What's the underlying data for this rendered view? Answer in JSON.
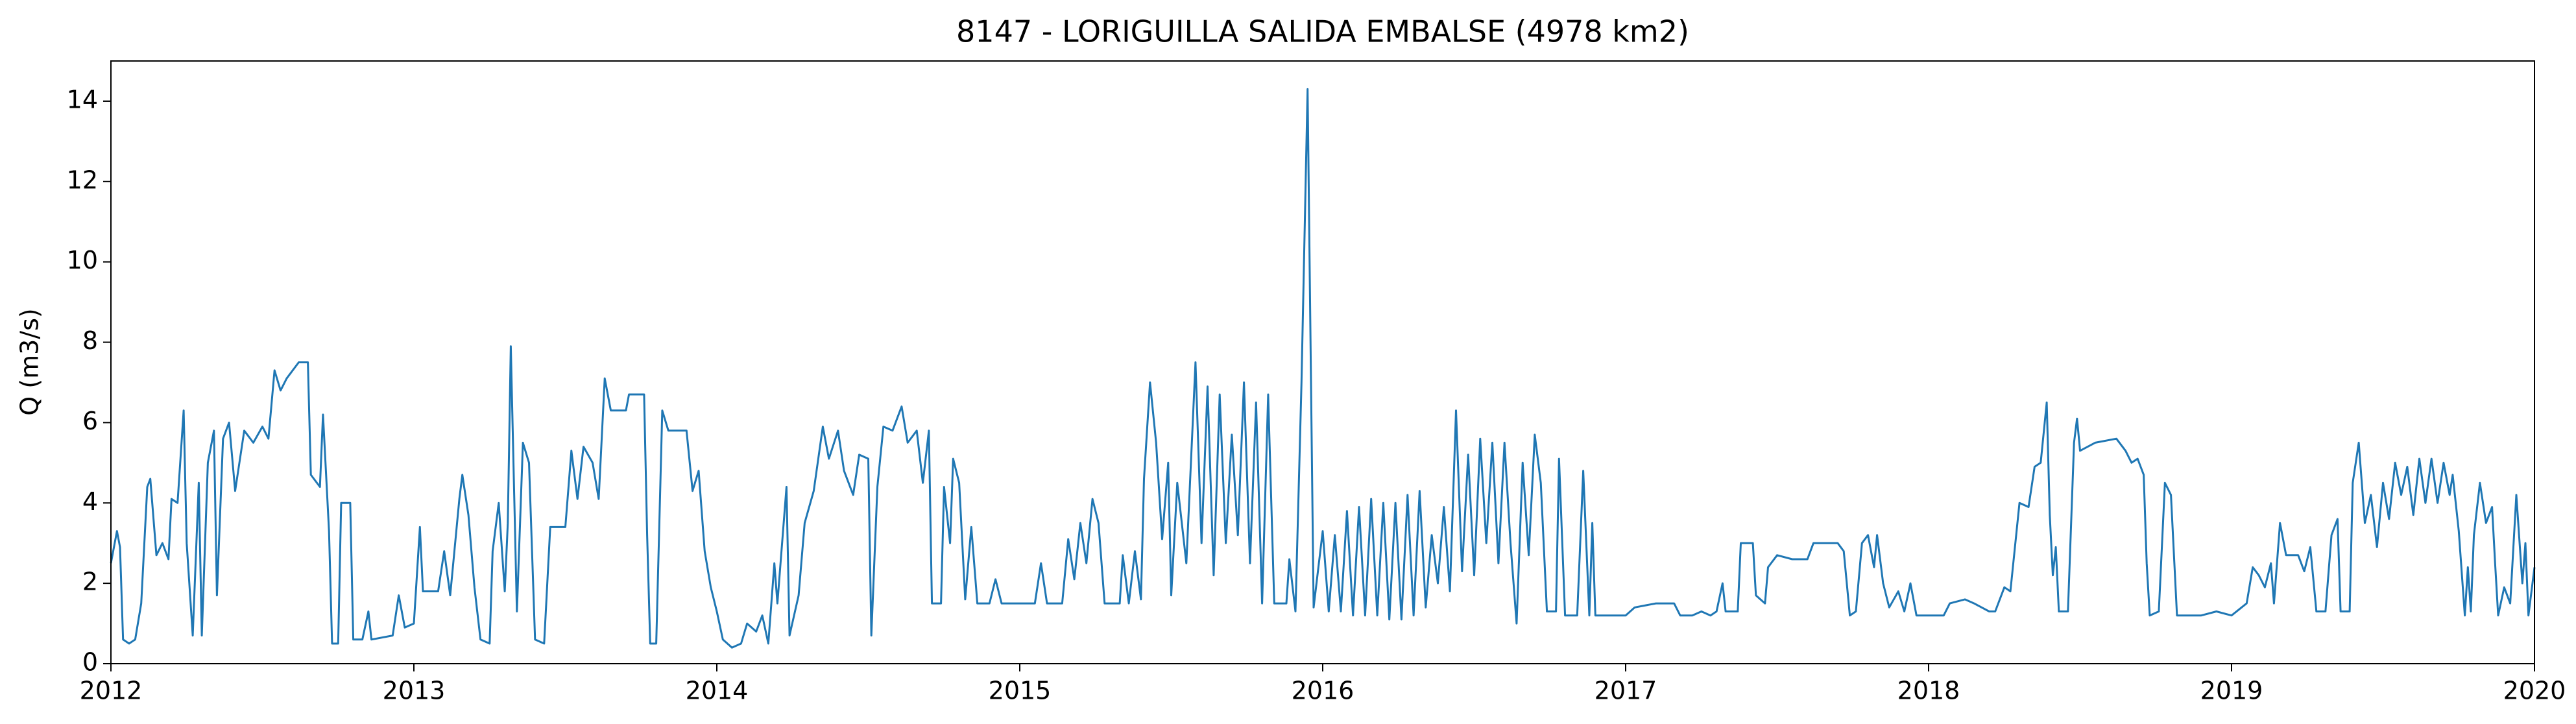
{
  "chart_data": {
    "type": "line",
    "title": "8147 - LORIGUILLA SALIDA EMBALSE (4978 km2)",
    "y_label": "Q (m3/s)",
    "color": "#1f77b4",
    "xlim": [
      2012,
      2020
    ],
    "xticks": [
      2012,
      2013,
      2014,
      2015,
      2016,
      2017,
      2018,
      2019,
      2020
    ],
    "ylim": [
      0,
      15
    ],
    "yticks": [
      0,
      2,
      4,
      6,
      8,
      10,
      12,
      14
    ],
    "x": [
      2012.0,
      2012.02,
      2012.03,
      2012.04,
      2012.06,
      2012.08,
      2012.1,
      2012.12,
      2012.13,
      2012.15,
      2012.17,
      2012.19,
      2012.2,
      2012.22,
      2012.24,
      2012.25,
      2012.27,
      2012.29,
      2012.3,
      2012.32,
      2012.34,
      2012.35,
      2012.37,
      2012.39,
      2012.41,
      2012.44,
      2012.47,
      2012.5,
      2012.52,
      2012.54,
      2012.56,
      2012.58,
      2012.62,
      2012.65,
      2012.66,
      2012.69,
      2012.7,
      2012.72,
      2012.73,
      2012.75,
      2012.76,
      2012.79,
      2012.8,
      2012.83,
      2012.85,
      2012.86,
      2012.93,
      2012.95,
      2012.97,
      2013.0,
      2013.02,
      2013.03,
      2013.08,
      2013.1,
      2013.12,
      2013.15,
      2013.16,
      2013.18,
      2013.2,
      2013.22,
      2013.25,
      2013.26,
      2013.28,
      2013.3,
      2013.31,
      2013.32,
      2013.34,
      2013.36,
      2013.38,
      2013.4,
      2013.43,
      2013.45,
      2013.5,
      2013.52,
      2013.54,
      2013.56,
      2013.59,
      2013.61,
      2013.63,
      2013.65,
      2013.7,
      2013.71,
      2013.76,
      2013.77,
      2013.78,
      2013.8,
      2013.82,
      2013.84,
      2013.9,
      2013.92,
      2013.94,
      2013.96,
      2013.98,
      2014.0,
      2014.02,
      2014.05,
      2014.08,
      2014.1,
      2014.13,
      2014.15,
      2014.17,
      2014.19,
      2014.2,
      2014.23,
      2014.24,
      2014.27,
      2014.29,
      2014.32,
      2014.35,
      2014.37,
      2014.4,
      2014.42,
      2014.45,
      2014.47,
      2014.5,
      2014.51,
      2014.53,
      2014.55,
      2014.58,
      2014.61,
      2014.63,
      2014.66,
      2014.68,
      2014.7,
      2014.71,
      2014.74,
      2014.75,
      2014.77,
      2014.78,
      2014.8,
      2014.82,
      2014.84,
      2014.86,
      2014.9,
      2014.92,
      2014.94,
      2015.05,
      2015.07,
      2015.09,
      2015.14,
      2015.16,
      2015.18,
      2015.2,
      2015.22,
      2015.24,
      2015.26,
      2015.28,
      2015.33,
      2015.34,
      2015.36,
      2015.38,
      2015.4,
      2015.41,
      2015.43,
      2015.45,
      2015.47,
      2015.49,
      2015.5,
      2015.52,
      2015.55,
      2015.58,
      2015.6,
      2015.62,
      2015.64,
      2015.66,
      2015.68,
      2015.7,
      2015.72,
      2015.74,
      2015.76,
      2015.78,
      2015.8,
      2015.82,
      2015.84,
      2015.88,
      2015.89,
      2015.91,
      2015.93,
      2015.95,
      2015.97,
      2016.0,
      2016.02,
      2016.04,
      2016.06,
      2016.08,
      2016.1,
      2016.12,
      2016.14,
      2016.16,
      2016.18,
      2016.2,
      2016.22,
      2016.24,
      2016.26,
      2016.28,
      2016.3,
      2016.32,
      2016.34,
      2016.36,
      2016.38,
      2016.4,
      2016.42,
      2016.44,
      2016.46,
      2016.48,
      2016.5,
      2016.52,
      2016.54,
      2016.56,
      2016.58,
      2016.6,
      2016.62,
      2016.64,
      2016.66,
      2016.68,
      2016.7,
      2016.72,
      2016.74,
      2016.77,
      2016.78,
      2016.8,
      2016.84,
      2016.86,
      2016.88,
      2016.89,
      2016.9,
      2017.0,
      2017.03,
      2017.1,
      2017.16,
      2017.18,
      2017.22,
      2017.25,
      2017.28,
      2017.3,
      2017.32,
      2017.33,
      2017.37,
      2017.38,
      2017.42,
      2017.43,
      2017.46,
      2017.47,
      2017.5,
      2017.55,
      2017.6,
      2017.62,
      2017.7,
      2017.72,
      2017.74,
      2017.76,
      2017.78,
      2017.8,
      2017.82,
      2017.83,
      2017.85,
      2017.87,
      2017.9,
      2017.92,
      2017.94,
      2017.96,
      2018.05,
      2018.07,
      2018.12,
      2018.15,
      2018.2,
      2018.22,
      2018.25,
      2018.27,
      2018.3,
      2018.33,
      2018.35,
      2018.37,
      2018.39,
      2018.4,
      2018.41,
      2018.42,
      2018.43,
      2018.46,
      2018.48,
      2018.49,
      2018.5,
      2018.55,
      2018.62,
      2018.65,
      2018.67,
      2018.69,
      2018.71,
      2018.72,
      2018.73,
      2018.76,
      2018.78,
      2018.8,
      2018.82,
      2018.9,
      2018.95,
      2019.0,
      2019.05,
      2019.07,
      2019.09,
      2019.11,
      2019.13,
      2019.14,
      2019.16,
      2019.18,
      2019.22,
      2019.24,
      2019.26,
      2019.28,
      2019.31,
      2019.33,
      2019.35,
      2019.36,
      2019.39,
      2019.4,
      2019.42,
      2019.44,
      2019.46,
      2019.48,
      2019.5,
      2019.52,
      2019.54,
      2019.56,
      2019.58,
      2019.6,
      2019.62,
      2019.64,
      2019.66,
      2019.68,
      2019.7,
      2019.72,
      2019.73,
      2019.75,
      2019.77,
      2019.78,
      2019.79,
      2019.8,
      2019.82,
      2019.84,
      2019.86,
      2019.87,
      2019.88,
      2019.9,
      2019.92,
      2019.94,
      2019.96,
      2019.97,
      2019.98,
      2020.0
    ],
    "values": [
      2.5,
      3.3,
      2.9,
      0.6,
      0.5,
      0.6,
      1.5,
      4.4,
      4.6,
      2.7,
      3.0,
      2.6,
      4.1,
      4.0,
      6.3,
      3.0,
      0.7,
      4.5,
      0.7,
      5.0,
      5.8,
      1.7,
      5.6,
      6.0,
      4.3,
      5.8,
      5.5,
      5.9,
      5.6,
      7.3,
      6.8,
      7.1,
      7.5,
      7.5,
      4.7,
      4.4,
      6.2,
      3.3,
      0.5,
      0.5,
      4.0,
      4.0,
      0.6,
      0.6,
      1.3,
      0.6,
      0.7,
      1.7,
      0.9,
      1.0,
      3.4,
      1.8,
      1.8,
      2.8,
      1.7,
      4.1,
      4.7,
      3.7,
      1.9,
      0.6,
      0.5,
      2.8,
      4.0,
      1.8,
      3.5,
      7.9,
      1.3,
      5.5,
      5.0,
      0.6,
      0.5,
      3.4,
      3.4,
      5.3,
      4.1,
      5.4,
      5.0,
      4.1,
      7.1,
      6.3,
      6.3,
      6.7,
      6.7,
      3.2,
      0.5,
      0.5,
      6.3,
      5.8,
      5.8,
      4.3,
      4.8,
      2.8,
      1.9,
      1.3,
      0.6,
      0.4,
      0.5,
      1.0,
      0.8,
      1.2,
      0.5,
      2.5,
      1.5,
      4.4,
      0.7,
      1.7,
      3.5,
      4.3,
      5.9,
      5.1,
      5.8,
      4.8,
      4.2,
      5.2,
      5.1,
      0.7,
      4.4,
      5.9,
      5.8,
      6.4,
      5.5,
      5.8,
      4.5,
      5.8,
      1.5,
      1.5,
      4.4,
      3.0,
      5.1,
      4.5,
      1.6,
      3.4,
      1.5,
      1.5,
      2.1,
      1.5,
      1.5,
      2.5,
      1.5,
      1.5,
      3.1,
      2.1,
      3.5,
      2.5,
      4.1,
      3.5,
      1.5,
      1.5,
      2.7,
      1.5,
      2.8,
      1.6,
      4.6,
      7.0,
      5.5,
      3.1,
      5.0,
      1.7,
      4.5,
      2.5,
      7.5,
      3.0,
      6.9,
      2.2,
      6.7,
      3.0,
      5.7,
      3.2,
      7.0,
      2.5,
      6.5,
      1.5,
      6.7,
      1.5,
      1.5,
      2.6,
      1.3,
      7.0,
      14.3,
      1.4,
      3.3,
      1.3,
      3.2,
      1.3,
      3.8,
      1.2,
      3.9,
      1.2,
      4.1,
      1.2,
      4.0,
      1.1,
      4.0,
      1.1,
      4.2,
      1.2,
      4.3,
      1.4,
      3.2,
      2.0,
      3.9,
      1.8,
      6.3,
      2.3,
      5.2,
      2.2,
      5.6,
      3.0,
      5.5,
      2.5,
      5.5,
      3.0,
      1.0,
      5.0,
      2.7,
      5.7,
      4.5,
      1.3,
      1.3,
      5.1,
      1.2,
      1.2,
      4.8,
      1.2,
      3.5,
      1.2,
      1.2,
      1.4,
      1.5,
      1.5,
      1.2,
      1.2,
      1.3,
      1.2,
      1.3,
      2.0,
      1.3,
      1.3,
      3.0,
      3.0,
      1.7,
      1.5,
      2.4,
      2.7,
      2.6,
      2.6,
      3.0,
      3.0,
      2.8,
      1.2,
      1.3,
      3.0,
      3.2,
      2.4,
      3.2,
      2.0,
      1.4,
      1.8,
      1.3,
      2.0,
      1.2,
      1.2,
      1.5,
      1.6,
      1.5,
      1.3,
      1.3,
      1.9,
      1.8,
      4.0,
      3.9,
      4.9,
      5.0,
      6.5,
      3.7,
      2.2,
      2.9,
      1.3,
      1.3,
      5.5,
      6.1,
      5.3,
      5.5,
      5.6,
      5.3,
      5.0,
      5.1,
      4.7,
      2.5,
      1.2,
      1.3,
      4.5,
      4.2,
      1.2,
      1.2,
      1.3,
      1.2,
      1.5,
      2.4,
      2.2,
      1.9,
      2.5,
      1.5,
      3.5,
      2.7,
      2.7,
      2.3,
      2.9,
      1.3,
      1.3,
      3.2,
      3.6,
      1.3,
      1.3,
      4.5,
      5.5,
      3.5,
      4.2,
      2.9,
      4.5,
      3.6,
      5.0,
      4.2,
      4.9,
      3.7,
      5.1,
      4.0,
      5.1,
      4.0,
      5.0,
      4.2,
      4.7,
      3.3,
      1.2,
      2.4,
      1.3,
      3.2,
      4.5,
      3.5,
      3.9,
      2.5,
      1.2,
      1.9,
      1.5,
      4.2,
      2.0,
      3.0,
      1.2,
      2.4
    ]
  }
}
